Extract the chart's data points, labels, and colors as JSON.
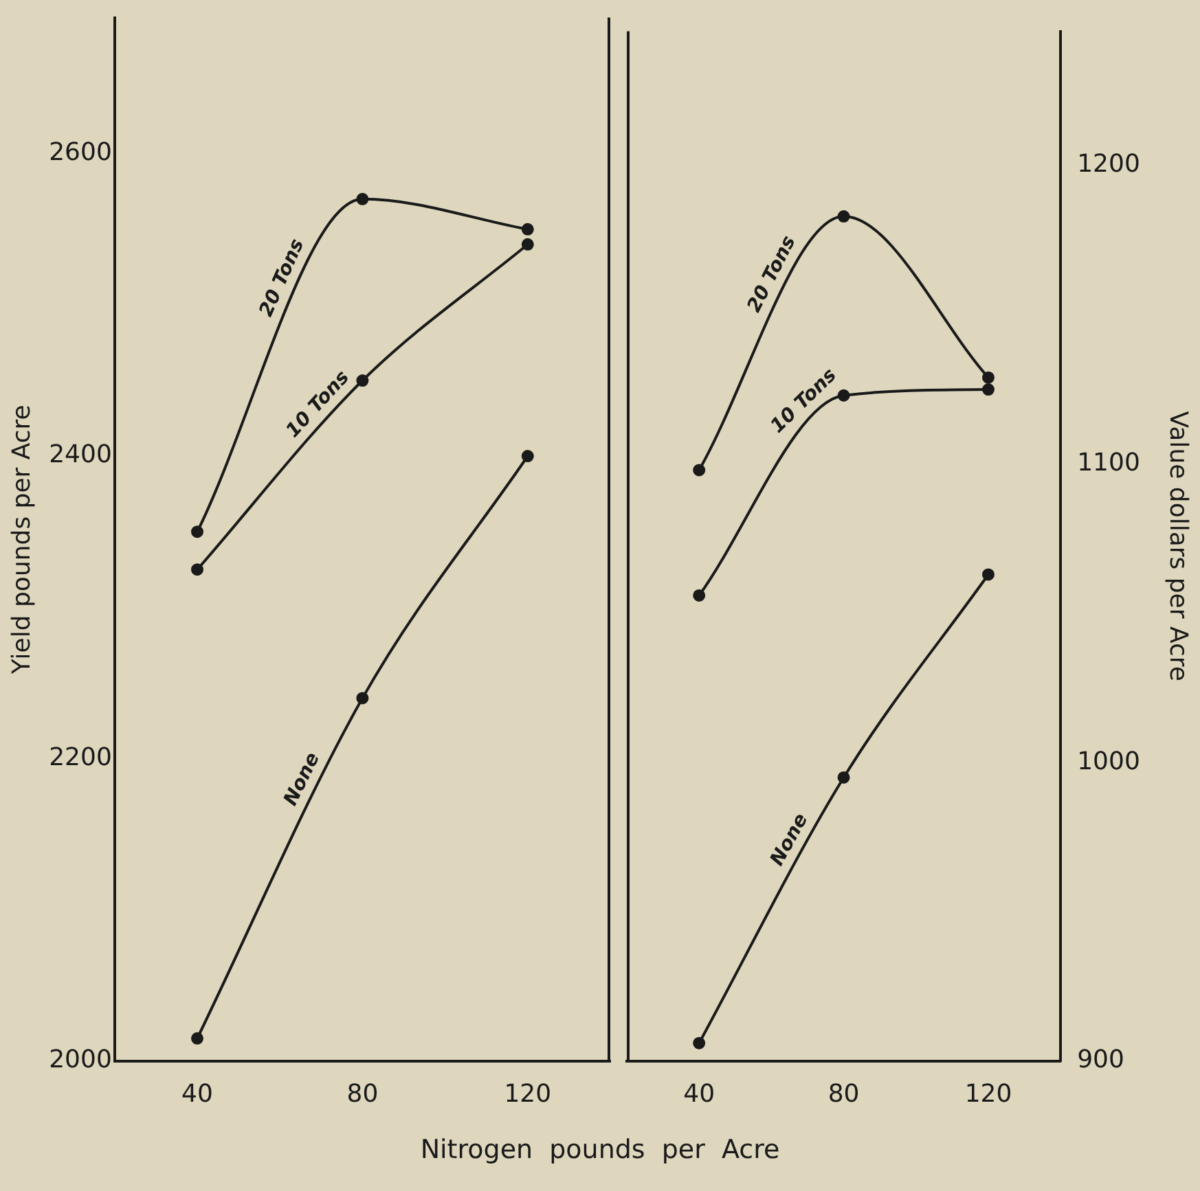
{
  "chart_data": [
    {
      "type": "line",
      "xlabel": "Nitrogen pounds per Acre",
      "ylabel": "Yield pounds per Acre",
      "x": [
        40,
        80,
        120
      ],
      "xlim": [
        20,
        140
      ],
      "xticks": [
        40,
        80,
        120
      ],
      "ylim": [
        2000,
        2690
      ],
      "yticks": [
        2000,
        2200,
        2400,
        2600
      ],
      "grid": false,
      "legend": false,
      "marker": "circle",
      "series": [
        {
          "name": "20 Tons",
          "color": "#1a1a1a",
          "values": [
            2350,
            2570,
            2550
          ]
        },
        {
          "name": "10 Tons",
          "color": "#1a1a1a",
          "values": [
            2325,
            2450,
            2540
          ]
        },
        {
          "name": "None",
          "color": "#1a1a1a",
          "values": [
            2015,
            2240,
            2400
          ]
        }
      ]
    },
    {
      "type": "line",
      "y2label": "Value dollars per Acre",
      "x": [
        40,
        80,
        120
      ],
      "xlim": [
        20,
        140
      ],
      "xticks": [
        40,
        80,
        120
      ],
      "y2lim": [
        900,
        1245
      ],
      "y2ticks": [
        900,
        1000,
        1100,
        1200
      ],
      "grid": false,
      "legend": false,
      "marker": "circle",
      "series": [
        {
          "name": "20 Tons",
          "color": "#1a1a1a",
          "axis": "y2",
          "values": [
            1098,
            1183,
            1129
          ]
        },
        {
          "name": "10 Tons",
          "color": "#1a1a1a",
          "axis": "y2",
          "values": [
            1056,
            1123,
            1125
          ]
        },
        {
          "name": "None",
          "color": "#1a1a1a",
          "axis": "y2",
          "values": [
            906,
            995,
            1063
          ]
        }
      ]
    }
  ]
}
